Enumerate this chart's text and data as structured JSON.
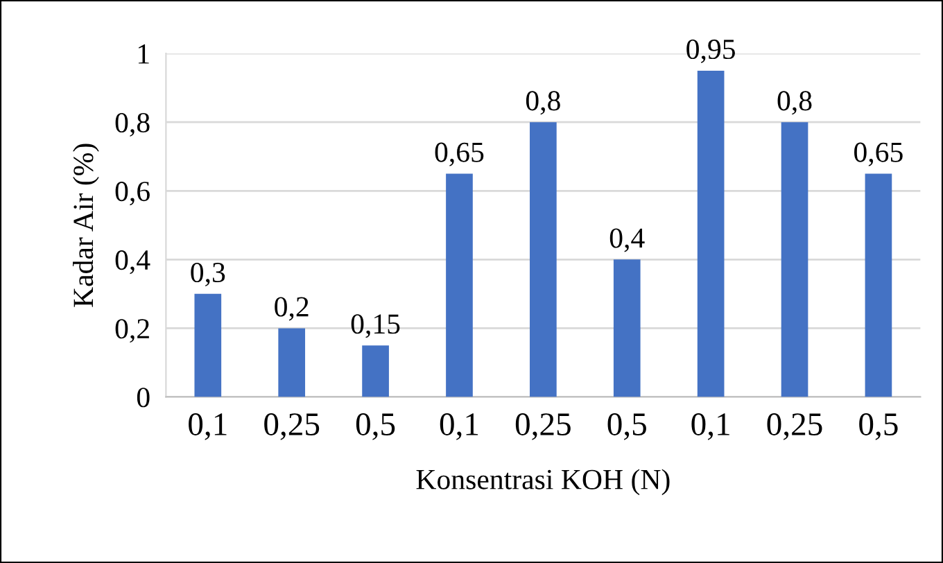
{
  "chart_data": {
    "type": "bar",
    "xlabel": "Konsentrasi KOH (N)",
    "ylabel": "Kadar Air (%)",
    "categories": [
      "0,1",
      "0,25",
      "0,5",
      "0,1",
      "0,25",
      "0,5",
      "0,1",
      "0,25",
      "0,5"
    ],
    "values": [
      0.3,
      0.2,
      0.15,
      0.65,
      0.8,
      0.4,
      0.95,
      0.8,
      0.65
    ],
    "value_labels": [
      "0,3",
      "0,2",
      "0,15",
      "0,65",
      "0,8",
      "0,4",
      "0,95",
      "0,8",
      "0,65"
    ],
    "color": "#4472c4",
    "ylim": [
      0,
      1
    ],
    "yticks": [
      0,
      {
        "value": 0.2,
        "label": "0,2"
      },
      {
        "value": 0.4,
        "label": "0,4"
      },
      {
        "value": 0.6,
        "label": "0,6"
      },
      {
        "value": 0.8,
        "label": "0,8"
      },
      1
    ],
    "grid": "y"
  }
}
